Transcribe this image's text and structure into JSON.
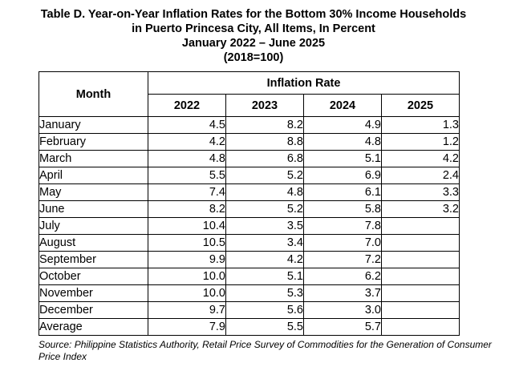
{
  "title": {
    "line1": "Table D. Year-on-Year Inflation Rates for the Bottom 30% Income Households",
    "line2": "in Puerto Princesa City, All Items, In Percent",
    "line3": "January 2022 – June 2025",
    "line4": "(2018=100)"
  },
  "table": {
    "month_header": "Month",
    "group_header": "Inflation Rate",
    "years": [
      "2022",
      "2023",
      "2024",
      "2025"
    ],
    "rows": [
      {
        "month": "January",
        "values": [
          "4.5",
          "8.2",
          "4.9",
          "1.3"
        ]
      },
      {
        "month": "February",
        "values": [
          "4.2",
          "8.8",
          "4.8",
          "1.2"
        ]
      },
      {
        "month": "March",
        "values": [
          "4.8",
          "6.8",
          "5.1",
          "4.2"
        ]
      },
      {
        "month": "April",
        "values": [
          "5.5",
          "5.2",
          "6.9",
          "2.4"
        ]
      },
      {
        "month": "May",
        "values": [
          "7.4",
          "4.8",
          "6.1",
          "3.3"
        ]
      },
      {
        "month": "June",
        "values": [
          "8.2",
          "5.2",
          "5.8",
          "3.2"
        ]
      },
      {
        "month": "July",
        "values": [
          "10.4",
          "3.5",
          "7.8",
          ""
        ]
      },
      {
        "month": "August",
        "values": [
          "10.5",
          "3.4",
          "7.0",
          ""
        ]
      },
      {
        "month": "September",
        "values": [
          "9.9",
          "4.2",
          "7.2",
          ""
        ]
      },
      {
        "month": "October",
        "values": [
          "10.0",
          "5.1",
          "6.2",
          ""
        ]
      },
      {
        "month": "November",
        "values": [
          "10.0",
          "5.3",
          "3.7",
          ""
        ]
      },
      {
        "month": "December",
        "values": [
          "9.7",
          "5.6",
          "3.0",
          ""
        ]
      },
      {
        "month": "Average",
        "values": [
          "7.9",
          "5.5",
          "5.7",
          ""
        ]
      }
    ]
  },
  "source": "Source: Philippine Statistics Authority, Retail Price Survey of Commodities for the Generation of Consumer Price Index"
}
